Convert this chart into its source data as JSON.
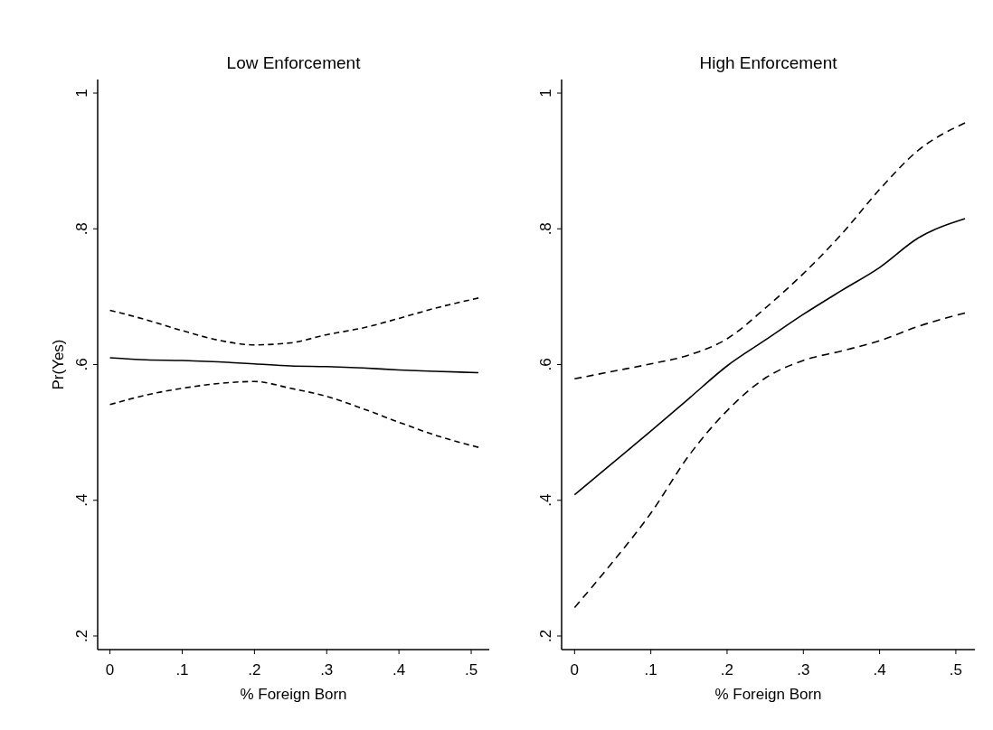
{
  "chart_data": [
    {
      "type": "line",
      "title": "Low Enforcement",
      "xlabel": "% Foreign Born",
      "ylabel": "Pr(Yes)",
      "x": [
        0,
        0.05,
        0.1,
        0.15,
        0.2,
        0.25,
        0.3,
        0.35,
        0.4,
        0.45,
        0.51
      ],
      "xlim": [
        -0.017,
        0.525
      ],
      "ylim": [
        0.18,
        1.02
      ],
      "xticks": [
        {
          "value": 0,
          "label": "0"
        },
        {
          "value": 0.1,
          "label": ".1"
        },
        {
          "value": 0.2,
          "label": ".2"
        },
        {
          "value": 0.3,
          "label": ".3"
        },
        {
          "value": 0.4,
          "label": ".4"
        },
        {
          "value": 0.5,
          "label": ".5"
        }
      ],
      "yticks": [
        {
          "value": 0.2,
          "label": ".2"
        },
        {
          "value": 0.4,
          "label": ".4"
        },
        {
          "value": 0.6,
          "label": ".6"
        },
        {
          "value": 0.8,
          "label": ".8"
        },
        {
          "value": 1,
          "label": "1"
        }
      ],
      "marker": "none",
      "series": [
        {
          "color": "#000000",
          "line_style": "solid",
          "values": [
            0.61,
            0.607,
            0.606,
            0.604,
            0.601,
            0.598,
            0.597,
            0.595,
            0.592,
            0.59,
            0.588
          ]
        },
        {
          "color": "#000000",
          "line_style": "dashed",
          "values": [
            0.541,
            0.555,
            0.565,
            0.572,
            0.575,
            0.565,
            0.553,
            0.535,
            0.515,
            0.496,
            0.478
          ]
        },
        {
          "color": "#000000",
          "line_style": "dashed",
          "values": [
            0.68,
            0.666,
            0.65,
            0.636,
            0.629,
            0.632,
            0.644,
            0.654,
            0.668,
            0.683,
            0.698
          ]
        }
      ]
    },
    {
      "type": "line",
      "title": "High Enforcement",
      "xlabel": "% Foreign Born",
      "x": [
        0,
        0.05,
        0.1,
        0.15,
        0.2,
        0.25,
        0.3,
        0.35,
        0.4,
        0.45,
        0.512
      ],
      "xlim": [
        -0.017,
        0.525
      ],
      "ylim": [
        0.18,
        1.02
      ],
      "xticks": [
        {
          "value": 0,
          "label": "0"
        },
        {
          "value": 0.1,
          "label": ".1"
        },
        {
          "value": 0.2,
          "label": ".2"
        },
        {
          "value": 0.3,
          "label": ".3"
        },
        {
          "value": 0.4,
          "label": ".4"
        },
        {
          "value": 0.5,
          "label": ".5"
        }
      ],
      "yticks": [
        {
          "value": 0.2,
          "label": ".2"
        },
        {
          "value": 0.4,
          "label": ".4"
        },
        {
          "value": 0.6,
          "label": ".6"
        },
        {
          "value": 0.8,
          "label": ".8"
        },
        {
          "value": 1,
          "label": "1"
        }
      ],
      "marker": "none",
      "series": [
        {
          "color": "#000000",
          "line_style": "solid",
          "values": [
            0.408,
            0.455,
            0.502,
            0.55,
            0.598,
            0.636,
            0.674,
            0.709,
            0.743,
            0.786,
            0.815
          ]
        },
        {
          "color": "#000000",
          "line_style": "dashed",
          "values": [
            0.242,
            0.309,
            0.381,
            0.466,
            0.532,
            0.58,
            0.606,
            0.62,
            0.635,
            0.656,
            0.676
          ]
        },
        {
          "color": "#000000",
          "line_style": "dashed",
          "values": [
            0.579,
            0.59,
            0.601,
            0.614,
            0.638,
            0.683,
            0.734,
            0.792,
            0.858,
            0.915,
            0.956
          ]
        }
      ]
    }
  ]
}
